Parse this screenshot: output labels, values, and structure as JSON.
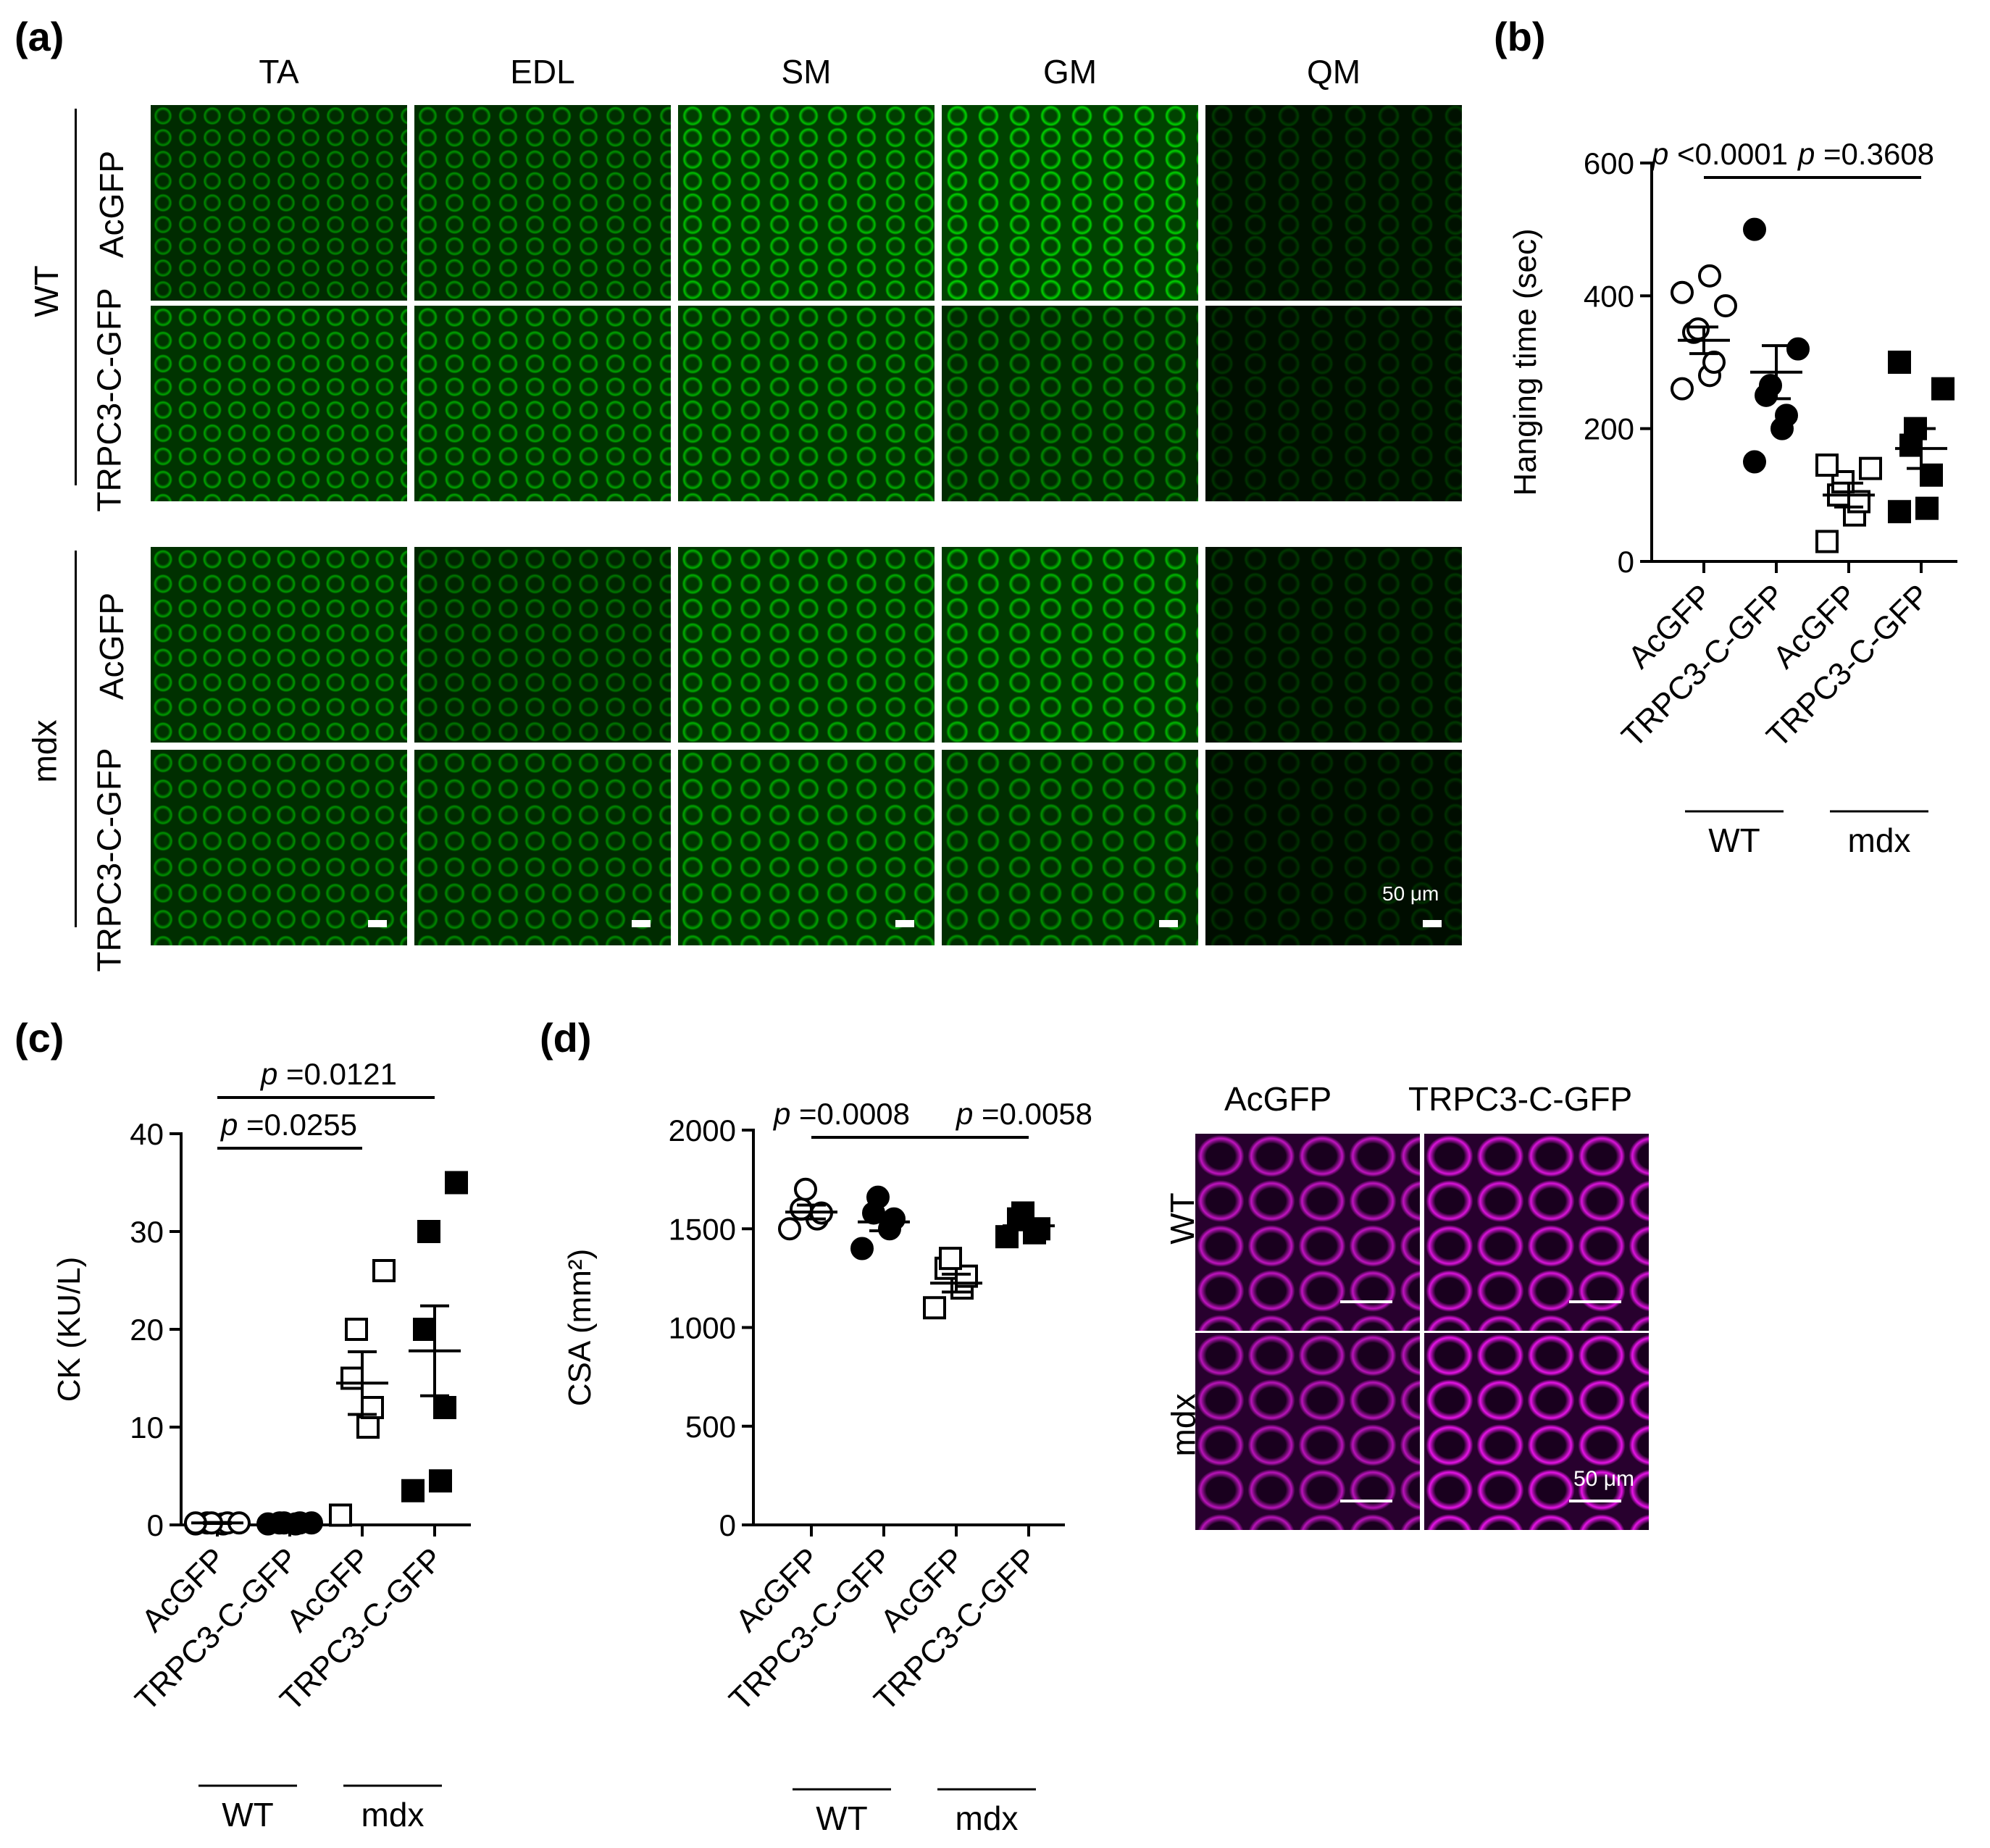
{
  "panel_labels": {
    "a": "(a)",
    "b": "(b)",
    "c": "(c)",
    "d": "(d)"
  },
  "panel_a": {
    "columns": [
      "TA",
      "EDL",
      "SM",
      "GM",
      "QM"
    ],
    "groups": [
      {
        "name": "WT",
        "rows": [
          "AcGFP",
          "TRPC3-C-GFP"
        ]
      },
      {
        "name": "mdx",
        "rows": [
          "AcGFP",
          "TRPC3-C-GFP"
        ]
      }
    ],
    "scale_bar": "50 μm",
    "brightness": [
      [
        0.55,
        0.6,
        0.85,
        0.95,
        0.12
      ],
      [
        0.7,
        0.7,
        0.75,
        0.55,
        0.08
      ],
      [
        0.65,
        0.45,
        0.75,
        0.8,
        0.1
      ],
      [
        0.6,
        0.55,
        0.7,
        0.6,
        0.05
      ]
    ]
  },
  "panel_d_images": {
    "columns": [
      "AcGFP",
      "TRPC3-C-GFP"
    ],
    "rows": [
      "WT",
      "mdx"
    ],
    "scale_bar": "50 μm"
  },
  "chart_data": [
    {
      "id": "b",
      "type": "scatter",
      "ylabel": "Hanging time (sec)",
      "ylim": [
        0,
        600
      ],
      "yticks": [
        0,
        200,
        400,
        600
      ],
      "categories": [
        "AcGFP",
        "TRPC3-C-GFP",
        "AcGFP",
        "TRPC3-C-GFP"
      ],
      "groups": [
        {
          "name": "WT",
          "span": [
            0,
            1
          ]
        },
        {
          "name": "mdx",
          "span": [
            2,
            3
          ]
        }
      ],
      "markers": [
        "open-circle",
        "filled-circle",
        "open-square",
        "filled-square"
      ],
      "points": [
        [
          260,
          280,
          300,
          345,
          350,
          385,
          405,
          430
        ],
        [
          150,
          200,
          220,
          250,
          265,
          320,
          500
        ],
        [
          30,
          70,
          90,
          100,
          120,
          140,
          145
        ],
        [
          75,
          80,
          130,
          175,
          200,
          260,
          300
        ]
      ],
      "mean": [
        333,
        285,
        100,
        170
      ],
      "sem": [
        20,
        40,
        18,
        30
      ],
      "significance": [
        {
          "from": 0,
          "to": 2,
          "p": "<0.0001"
        },
        {
          "from": 2,
          "to": 3,
          "p": "=0.3608"
        }
      ]
    },
    {
      "id": "c",
      "type": "scatter",
      "ylabel": "CK (KU/L)",
      "ylim": [
        0,
        40
      ],
      "yticks": [
        0,
        10,
        20,
        30,
        40
      ],
      "categories": [
        "AcGFP",
        "TRPC3-C-GFP",
        "AcGFP",
        "TRPC3-C-GFP"
      ],
      "groups": [
        {
          "name": "WT",
          "span": [
            0,
            1
          ]
        },
        {
          "name": "mdx",
          "span": [
            2,
            3
          ]
        }
      ],
      "markers": [
        "open-circle",
        "filled-circle",
        "open-square",
        "filled-square"
      ],
      "points": [
        [
          0.1,
          0.1,
          0.2,
          0.2,
          0.2,
          0.2,
          0.2
        ],
        [
          0.1,
          0.1,
          0.2,
          0.2,
          0.2,
          0.2
        ],
        [
          1,
          10,
          12,
          15,
          20,
          26
        ],
        [
          3.5,
          4.5,
          12,
          20,
          30,
          35
        ]
      ],
      "mean": [
        0.2,
        0.2,
        14.5,
        17.8
      ],
      "sem": [
        0.05,
        0.05,
        3.2,
        4.6
      ],
      "significance": [
        {
          "from": 0,
          "to": 2,
          "p": "=0.0255"
        },
        {
          "from": 0,
          "to": 3,
          "p": "=0.0121"
        }
      ]
    },
    {
      "id": "d",
      "type": "scatter",
      "ylabel": "CSA (mm²)",
      "ylim": [
        0,
        2000
      ],
      "yticks": [
        0,
        500,
        1000,
        1500,
        2000
      ],
      "categories": [
        "AcGFP",
        "TRPC3-C-GFP",
        "AcGFP",
        "TRPC3-C-GFP"
      ],
      "groups": [
        {
          "name": "WT",
          "span": [
            0,
            1
          ]
        },
        {
          "name": "mdx",
          "span": [
            2,
            3
          ]
        }
      ],
      "markers": [
        "open-circle",
        "filled-circle",
        "open-square",
        "filled-square"
      ],
      "points": [
        [
          1500,
          1550,
          1580,
          1600,
          1700
        ],
        [
          1400,
          1500,
          1550,
          1580,
          1660
        ],
        [
          1100,
          1200,
          1260,
          1300,
          1350
        ],
        [
          1460,
          1480,
          1500,
          1550,
          1580
        ]
      ],
      "mean": [
        1585,
        1535,
        1225,
        1515
      ],
      "sem": [
        35,
        45,
        45,
        20
      ],
      "significance": [
        {
          "from": 0,
          "to": 2,
          "p": "=0.0008"
        },
        {
          "from": 2,
          "to": 3,
          "p": "=0.0058"
        }
      ]
    }
  ]
}
